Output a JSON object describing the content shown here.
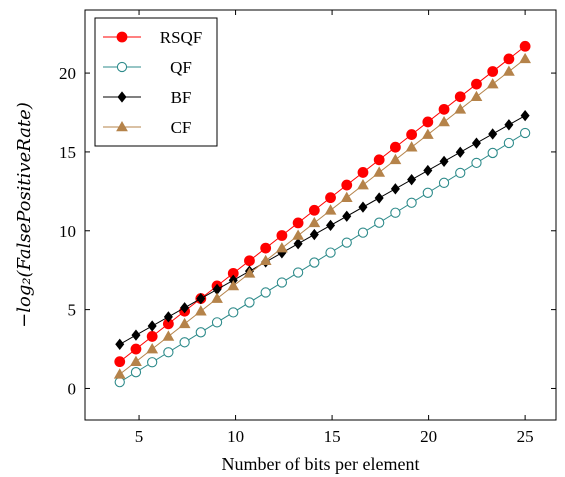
{
  "chart_data": {
    "type": "line",
    "title": "",
    "xlabel": "Number of bits per element",
    "ylabel": "−log₂(FalsePositiveRate)",
    "xlim": [
      2.2,
      26.6
    ],
    "ylim": [
      -2.0,
      24.0
    ],
    "xticks": [
      5,
      10,
      15,
      20,
      25
    ],
    "yticks": [
      0,
      5,
      10,
      15,
      20
    ],
    "grid": false,
    "legend_position": "top-left",
    "series": [
      {
        "name": "RSQF",
        "color": "#ff0000",
        "marker": "circle-filled",
        "points": [
          [
            4,
            1.7
          ],
          [
            25,
            21.7
          ]
        ]
      },
      {
        "name": "QF",
        "color": "#2e8b8b",
        "marker": "circle-open",
        "points": [
          [
            4,
            0.4
          ],
          [
            25,
            16.2
          ]
        ]
      },
      {
        "name": "BF",
        "color": "#000000",
        "marker": "diamond-filled",
        "points": [
          [
            4,
            2.8
          ],
          [
            25,
            17.3
          ]
        ]
      },
      {
        "name": "CF",
        "color": "#b5834a",
        "marker": "triangle-filled",
        "points": [
          [
            4,
            0.9
          ],
          [
            25,
            20.9
          ]
        ]
      }
    ]
  }
}
